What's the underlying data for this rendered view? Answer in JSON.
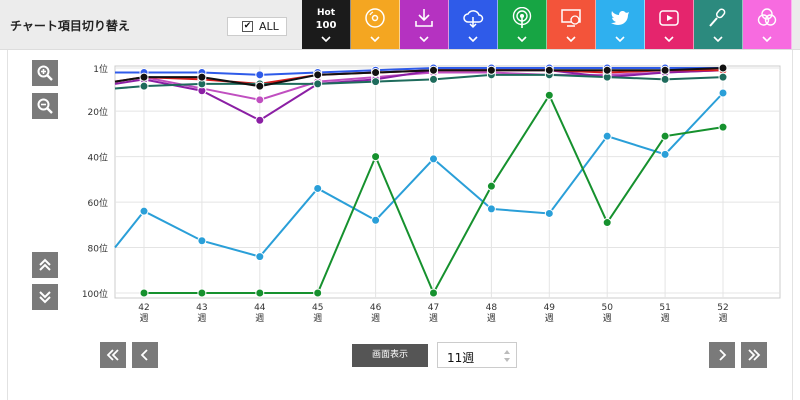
{
  "header": {
    "title": "チャート項目切り替え",
    "all_label": "ALL",
    "all_checked": true
  },
  "tabs": [
    {
      "id": "hot100",
      "line1": "Hot",
      "line2": "100",
      "color": "#1b1b1b",
      "icon": "chevron-down-icon"
    },
    {
      "id": "cd",
      "color": "#f4a621",
      "icon": "cd-disc-icon"
    },
    {
      "id": "download",
      "color": "#b532c1",
      "icon": "download-icon"
    },
    {
      "id": "streaming",
      "color": "#2f5be9",
      "icon": "cloud-download-icon"
    },
    {
      "id": "radio",
      "color": "#17a544",
      "icon": "radio-broadcast-icon"
    },
    {
      "id": "lookup",
      "color": "#f3543a",
      "icon": "pc-disc-icon"
    },
    {
      "id": "twitter",
      "color": "#2fb0ef",
      "icon": "twitter-bird-icon"
    },
    {
      "id": "video",
      "color": "#e5256d",
      "icon": "play-video-icon"
    },
    {
      "id": "karaoke",
      "color": "#2c8a7e",
      "icon": "microphone-icon"
    },
    {
      "id": "total",
      "color": "#f76be0",
      "icon": "overlap-circles-icon"
    }
  ],
  "side_tools": [
    {
      "name": "zoom-in",
      "icon": "zoom-in-icon"
    },
    {
      "name": "zoom-out",
      "icon": "zoom-out-icon"
    },
    {
      "name": "scroll-up",
      "icon": "double-chevron-up-icon"
    },
    {
      "name": "scroll-down",
      "icon": "double-chevron-down-icon"
    }
  ],
  "chart_data": {
    "type": "line",
    "y_inverted": true,
    "ylim": [
      1,
      100
    ],
    "yticks": [
      {
        "value": 1,
        "label": "1位"
      },
      {
        "value": 20,
        "label": "20位"
      },
      {
        "value": 40,
        "label": "40位"
      },
      {
        "value": 60,
        "label": "60位"
      },
      {
        "value": 80,
        "label": "80位"
      },
      {
        "value": 100,
        "label": "100位"
      }
    ],
    "categories": [
      "42",
      "43",
      "44",
      "45",
      "46",
      "47",
      "48",
      "49",
      "50",
      "51",
      "52"
    ],
    "category_suffix": "週",
    "series": [
      {
        "color": "#2a9fd8",
        "values": [
          64,
          77,
          84,
          54,
          68,
          41,
          63,
          65,
          31,
          39,
          12
        ],
        "start": 80
      },
      {
        "color": "#16912e",
        "values": [
          100,
          100,
          100,
          100,
          40,
          100,
          53,
          13,
          69,
          31,
          27
        ]
      },
      {
        "color": "#c04fc0",
        "values": [
          5,
          10,
          15,
          7,
          5,
          3,
          3,
          4,
          4,
          3,
          2
        ]
      },
      {
        "color": "#8b1fa4",
        "values": [
          6,
          11,
          24,
          8,
          6,
          2,
          2,
          2,
          5,
          3,
          2
        ],
        "start": 8
      },
      {
        "color": "#d81d1d",
        "values": [
          5,
          6,
          8,
          4,
          3,
          2,
          2,
          2,
          3,
          2,
          2
        ],
        "start": 7
      },
      {
        "color": "#2f5be9",
        "values": [
          3,
          3,
          4,
          3,
          2,
          1,
          1,
          1,
          1,
          1,
          1
        ],
        "start": 3
      },
      {
        "color": "#1e6b5c",
        "values": [
          9,
          8,
          8,
          8,
          7,
          6,
          4,
          4,
          5,
          6,
          5
        ],
        "start": 10
      },
      {
        "color": "#111111",
        "values": [
          5,
          5,
          9,
          4,
          3,
          2,
          2,
          2,
          2,
          2,
          1
        ],
        "start": 7
      }
    ],
    "grid": true
  },
  "nav": {
    "display_label": "画面表示",
    "display_value": "11週"
  }
}
